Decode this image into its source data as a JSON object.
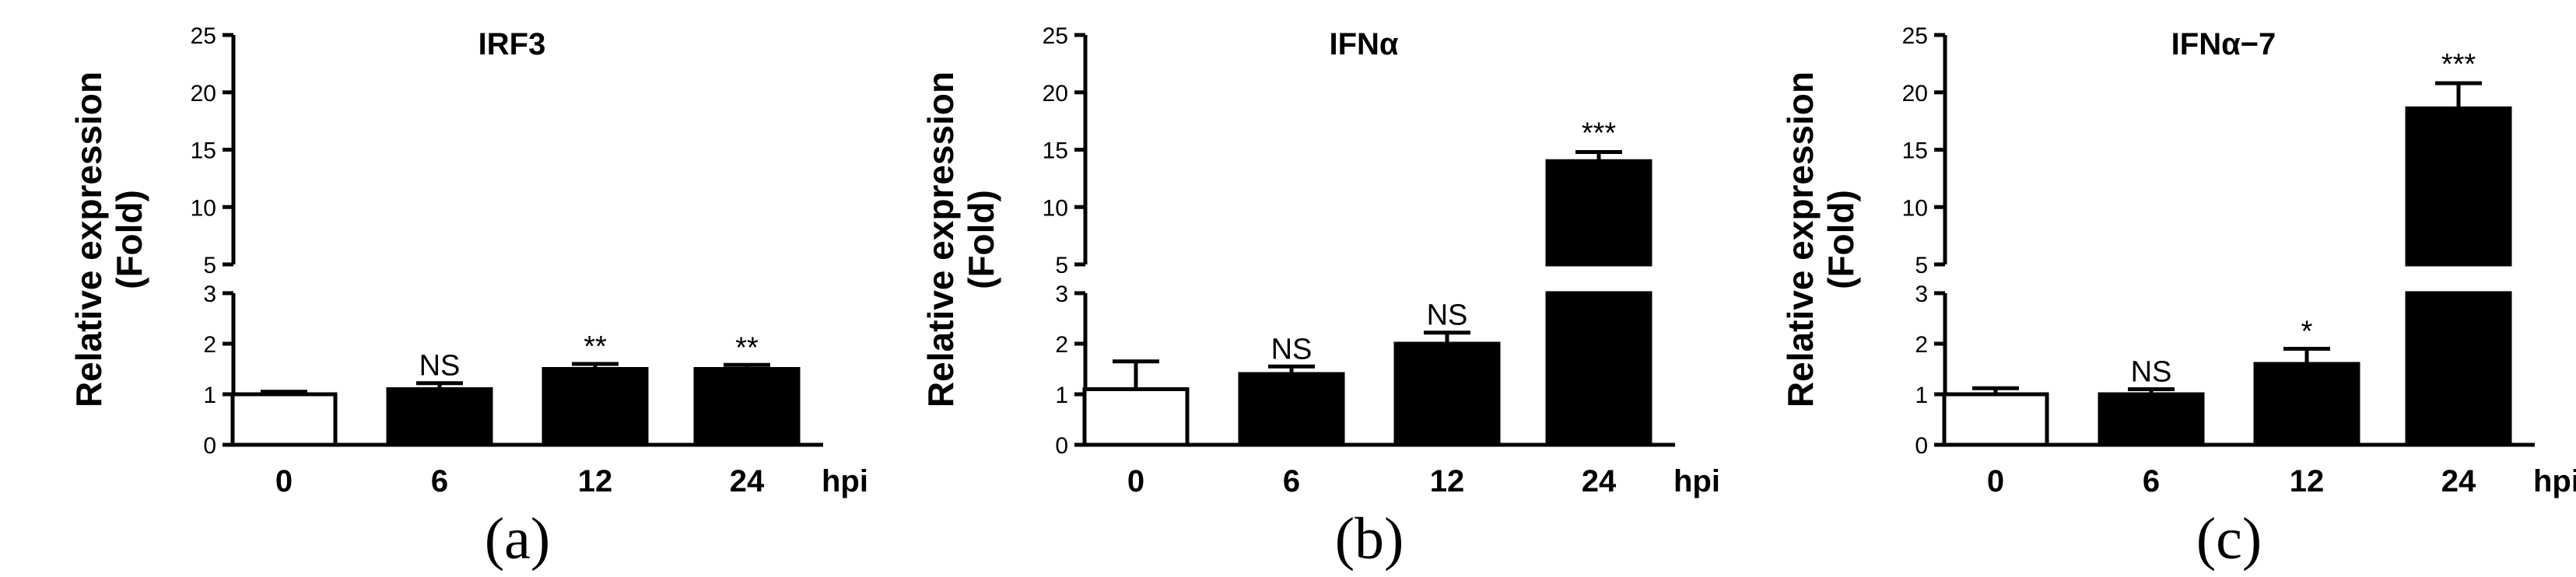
{
  "chart_data": [
    {
      "type": "bar",
      "title": "IRF3",
      "panel_label": "(a)",
      "ylabel": [
        "Relative expression",
        "(Fold)"
      ],
      "x_unit": "hpi",
      "categories": [
        "0",
        "6",
        "12",
        "24"
      ],
      "values": [
        1.0,
        1.1,
        1.5,
        1.5
      ],
      "errors": [
        0.05,
        0.12,
        0.1,
        0.08
      ],
      "fills": [
        "white",
        "black",
        "black",
        "black"
      ],
      "significance": [
        "",
        "NS",
        "**",
        "**"
      ],
      "y_axis_broken": true,
      "y_lower_range": [
        0,
        3
      ],
      "y_upper_range": [
        5,
        25
      ],
      "y_lower_ticks": [
        "0",
        "1",
        "2",
        "3"
      ],
      "y_upper_ticks": [
        "5",
        "10",
        "15",
        "20",
        "25"
      ]
    },
    {
      "type": "bar",
      "title": "IFNα",
      "panel_label": "(b)",
      "ylabel": [
        "Relative expression",
        "(Fold)"
      ],
      "x_unit": "hpi",
      "categories": [
        "0",
        "6",
        "12",
        "24"
      ],
      "values": [
        1.1,
        1.4,
        2.0,
        14.0
      ],
      "errors": [
        0.55,
        0.15,
        0.22,
        0.8
      ],
      "fills": [
        "white",
        "black",
        "black",
        "black"
      ],
      "significance": [
        "",
        "NS",
        "NS",
        "***"
      ],
      "y_axis_broken": true,
      "y_lower_range": [
        0,
        3
      ],
      "y_upper_range": [
        5,
        25
      ],
      "y_lower_ticks": [
        "0",
        "1",
        "2",
        "3"
      ],
      "y_upper_ticks": [
        "5",
        "10",
        "15",
        "20",
        "25"
      ]
    },
    {
      "type": "bar",
      "title": "IFNα−7",
      "panel_label": "(c)",
      "ylabel": [
        "Relative expression",
        "(Fold)"
      ],
      "x_unit": "hpi",
      "categories": [
        "0",
        "6",
        "12",
        "24"
      ],
      "values": [
        1.0,
        1.0,
        1.6,
        18.6
      ],
      "errors": [
        0.12,
        0.1,
        0.3,
        2.2
      ],
      "fills": [
        "white",
        "black",
        "black",
        "black"
      ],
      "significance": [
        "",
        "NS",
        "*",
        "***"
      ],
      "y_axis_broken": true,
      "y_lower_range": [
        0,
        3
      ],
      "y_upper_range": [
        5,
        25
      ],
      "y_lower_ticks": [
        "0",
        "1",
        "2",
        "3"
      ],
      "y_upper_ticks": [
        "5",
        "10",
        "15",
        "20",
        "25"
      ]
    }
  ]
}
